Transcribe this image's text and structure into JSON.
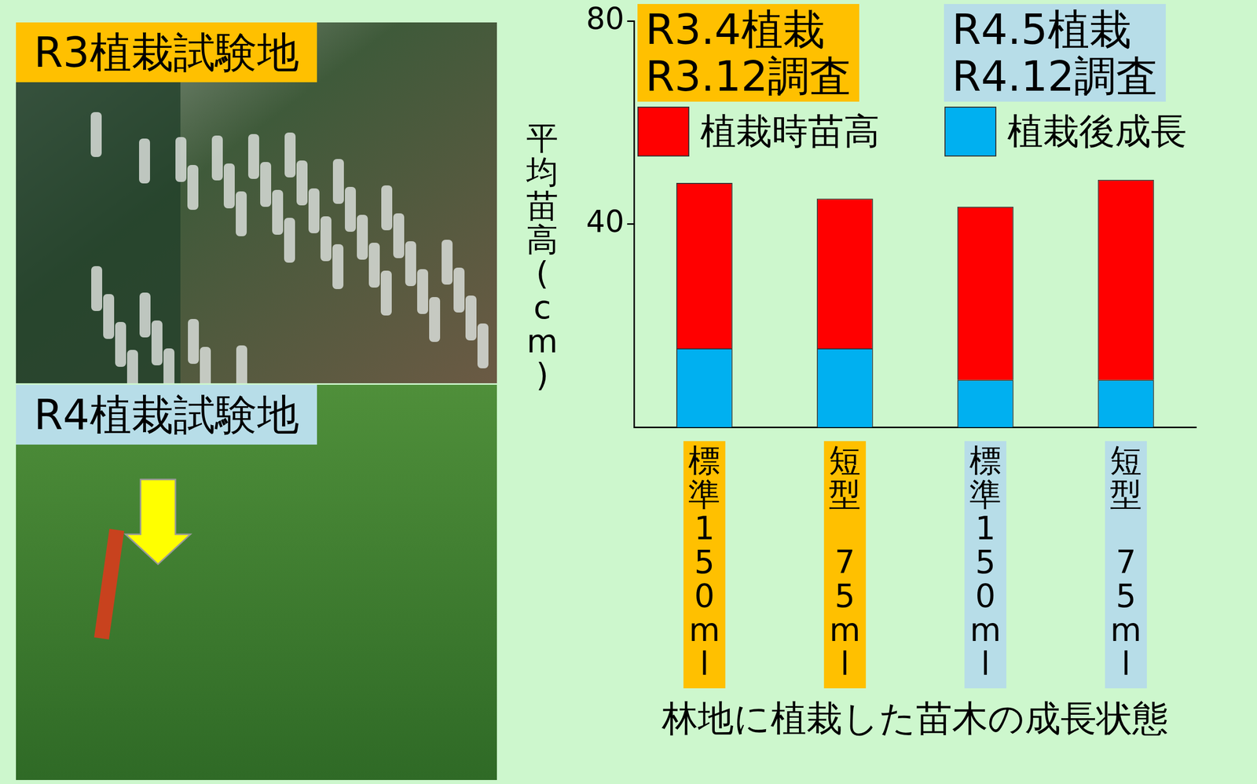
{
  "photos": [
    {
      "label": "R3植栽試験地",
      "color": "#ffc000"
    },
    {
      "label": "R4植栽試験地",
      "color": "#b7dde8"
    }
  ],
  "chart_data": {
    "type": "bar",
    "stacked": true,
    "y_label": "平均苗高(cm)",
    "x_label": "林地に植栽した苗木の成長状態",
    "groups": [
      {
        "title": "R3.4植栽",
        "subtitle": "R3.12調査",
        "color": "#ffc000",
        "categories": [
          "標準150ml",
          "短型 75ml"
        ]
      },
      {
        "title": "R4.5植栽",
        "subtitle": "R4.12調査",
        "color": "#b7dde8",
        "categories": [
          "標準150ml",
          "短型 75ml"
        ]
      }
    ],
    "categories": [
      "標準150ml",
      "短型 75ml",
      "標準150ml",
      "短型 75ml"
    ],
    "series": [
      {
        "name": "植栽時苗高",
        "color": "#ff0000",
        "values": [
          32.6,
          29.5,
          34.1,
          39.4
        ]
      },
      {
        "name": "植栽後成長",
        "color": "#00b0f0",
        "values": [
          15.5,
          15.5,
          9.3,
          9.3
        ]
      }
    ],
    "ylim": [
      0,
      80
    ],
    "yticks": [
      40,
      80
    ],
    "grid": false,
    "legend": "top"
  }
}
